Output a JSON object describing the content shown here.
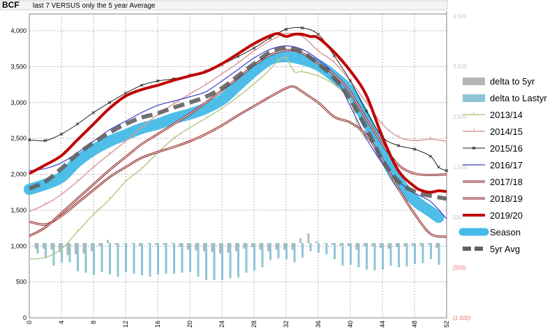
{
  "header": {
    "title": "BCF",
    "subtitle": "last 7 VERSUS only the 5 year Average"
  },
  "chart_data": {
    "type": "line",
    "title": "BCF",
    "subtitle": "last 7 VERSUS only the 5 year Average",
    "xlabel": "",
    "ylabel": "",
    "xlim": [
      0,
      52
    ],
    "ylim": [
      0,
      4200
    ],
    "y2lim": [
      -1500,
      4500
    ],
    "x_ticks": [
      "0",
      "4",
      "8",
      "12",
      "16",
      "20",
      "24",
      "28",
      "32",
      "36",
      "40",
      "44",
      "48",
      "52"
    ],
    "y_ticks": [
      "0",
      "500",
      "1,000",
      "1,500",
      "2,000",
      "2,500",
      "3,000",
      "3,500",
      "4,000"
    ],
    "y2_ticks": [
      "4,500",
      "3,500",
      "2,500",
      "1,500",
      "500",
      "(500)",
      "(1,500)"
    ],
    "grid": true,
    "legend_position": "right",
    "legend": [
      {
        "name": "delta to 5yr",
        "color": "#b5b5b5",
        "style": "bar"
      },
      {
        "name": "delta to Lastyr",
        "color": "#8ec4d4",
        "style": "bar"
      },
      {
        "name": "2013/14",
        "color": "#b5cc8a",
        "style": "ticked"
      },
      {
        "name": "2014/15",
        "color": "#d89c9c",
        "style": "ticked"
      },
      {
        "name": "2015/16",
        "color": "#222222",
        "style": "marker"
      },
      {
        "name": "2016/17",
        "color": "#3f3fcf",
        "style": "line"
      },
      {
        "name": "2017/18",
        "color": "#8b1a1a",
        "style": "double"
      },
      {
        "name": "2018/19",
        "color": "#8b1a1a",
        "style": "double"
      },
      {
        "name": "2019/20",
        "color": "#c00000",
        "style": "thick"
      },
      {
        "name": "Season",
        "color": "#45bbe8",
        "style": "band"
      },
      {
        "name": "5yr Avg",
        "color": "#606060",
        "style": "dashed"
      }
    ],
    "series": [
      {
        "name": "2013/14",
        "color": "#b5cc8a",
        "style": "ticked",
        "x": [
          0,
          2,
          4,
          6,
          8,
          10,
          12,
          14,
          16,
          18,
          20,
          22,
          24,
          26,
          28,
          30,
          31,
          32,
          33,
          34,
          36,
          38,
          40,
          40.5,
          41,
          42
        ],
        "values": [
          820,
          840,
          960,
          1200,
          1440,
          1650,
          1900,
          2080,
          2300,
          2500,
          2650,
          2780,
          2920,
          3080,
          3260,
          3460,
          3580,
          3620,
          3430,
          3430,
          3370,
          3250,
          3040,
          2850,
          2650,
          2480
        ]
      },
      {
        "name": "2014/15",
        "color": "#d89c9c",
        "style": "ticked",
        "x": [
          0,
          2,
          4,
          6,
          8,
          10,
          12,
          14,
          16,
          18,
          20,
          22,
          24,
          26,
          28,
          30,
          32,
          34,
          36,
          38,
          40,
          42,
          44,
          46,
          48,
          50,
          52
        ],
        "values": [
          1480,
          1580,
          1720,
          1900,
          2100,
          2280,
          2460,
          2650,
          2830,
          2980,
          3120,
          3250,
          3400,
          3550,
          3720,
          3860,
          3960,
          3920,
          3720,
          3560,
          3300,
          3000,
          2700,
          2520,
          2470,
          2490,
          2460
        ]
      },
      {
        "name": "2015/16",
        "color": "#222222",
        "style": "marker",
        "x": [
          0,
          2,
          4,
          6,
          8,
          10,
          12,
          14,
          16,
          18,
          20,
          22,
          24,
          26,
          28,
          30,
          32,
          34,
          36,
          38,
          40,
          42,
          44,
          46,
          48,
          50,
          51,
          52
        ],
        "values": [
          2480,
          2470,
          2560,
          2700,
          2860,
          3000,
          3130,
          3240,
          3300,
          3330,
          3380,
          3440,
          3530,
          3640,
          3760,
          3900,
          4020,
          4040,
          3950,
          3650,
          3300,
          2880,
          2520,
          2400,
          2350,
          2250,
          2100,
          2050
        ]
      },
      {
        "name": "2016/17",
        "color": "#3f3fcf",
        "style": "line",
        "x": [
          0,
          2,
          4,
          6,
          8,
          10,
          12,
          14,
          16,
          18,
          20,
          22,
          24,
          26,
          28,
          30,
          32,
          34,
          36,
          38,
          40,
          42,
          44,
          46,
          48,
          50,
          52
        ],
        "values": [
          2050,
          2080,
          2160,
          2300,
          2460,
          2620,
          2740,
          2860,
          2960,
          3020,
          3080,
          3150,
          3300,
          3460,
          3620,
          3740,
          3790,
          3740,
          3600,
          3380,
          2950,
          2500,
          2150,
          1900,
          1740,
          1620,
          1380
        ]
      },
      {
        "name": "2017/18",
        "color": "#8b1a1a",
        "style": "double",
        "x": [
          0,
          2,
          4,
          6,
          8,
          10,
          12,
          14,
          16,
          18,
          20,
          22,
          24,
          26,
          28,
          30,
          32,
          33,
          34,
          36,
          38,
          40,
          42,
          44,
          46,
          48,
          50,
          52
        ],
        "values": [
          1340,
          1300,
          1420,
          1600,
          1780,
          1960,
          2100,
          2230,
          2310,
          2380,
          2460,
          2560,
          2680,
          2820,
          2950,
          3080,
          3200,
          3220,
          3150,
          3000,
          2800,
          2720,
          2550,
          2200,
          1800,
          1450,
          1170,
          1130
        ]
      },
      {
        "name": "2018/19",
        "color": "#8b1a1a",
        "style": "double",
        "x": [
          0,
          2,
          4,
          6,
          8,
          10,
          12,
          14,
          16,
          18,
          20,
          22,
          24,
          26,
          28,
          30,
          32,
          34,
          36,
          38,
          40,
          42,
          44,
          46,
          48,
          50,
          52
        ],
        "values": [
          1140,
          1260,
          1460,
          1660,
          1860,
          2060,
          2240,
          2420,
          2560,
          2700,
          2840,
          3000,
          3170,
          3340,
          3520,
          3660,
          3730,
          3690,
          3550,
          3390,
          3140,
          2770,
          2420,
          2130,
          2010,
          1990,
          2000
        ]
      },
      {
        "name": "2019/20",
        "color": "#c00000",
        "style": "thick",
        "x": [
          0,
          2,
          4,
          6,
          8,
          10,
          12,
          14,
          16,
          18,
          20,
          22,
          24,
          26,
          28,
          30,
          31,
          32,
          33,
          34,
          35,
          36,
          38,
          40,
          42,
          44,
          46,
          48,
          49,
          50,
          51,
          52
        ],
        "values": [
          2010,
          2130,
          2260,
          2480,
          2700,
          2920,
          3090,
          3180,
          3240,
          3310,
          3370,
          3430,
          3540,
          3680,
          3820,
          3930,
          3960,
          3920,
          3950,
          3950,
          3920,
          3900,
          3700,
          3440,
          3100,
          2520,
          2050,
          1830,
          1770,
          1750,
          1770,
          1760
        ]
      },
      {
        "name": "Season",
        "color": "#45bbe8",
        "style": "band",
        "x": [
          0,
          2,
          4,
          6,
          8,
          10,
          12,
          14,
          16,
          18,
          20,
          22,
          24,
          26,
          28,
          30,
          32,
          34,
          36,
          38,
          40,
          42,
          44,
          46,
          48,
          50,
          51
        ],
        "values": [
          1790,
          1860,
          1960,
          2180,
          2340,
          2460,
          2550,
          2640,
          2700,
          2780,
          2840,
          2920,
          3040,
          3240,
          3440,
          3600,
          3640,
          3600,
          3520,
          3360,
          3140,
          2750,
          2300,
          1900,
          1640,
          1480,
          1400
        ]
      },
      {
        "name": "5yr Avg",
        "color": "#606060",
        "style": "dashed",
        "x": [
          0,
          2,
          4,
          6,
          8,
          10,
          12,
          14,
          16,
          18,
          20,
          22,
          24,
          26,
          28,
          30,
          32,
          34,
          36,
          38,
          40,
          42,
          44,
          46,
          48,
          50,
          52
        ],
        "values": [
          1800,
          1900,
          2080,
          2280,
          2440,
          2580,
          2700,
          2790,
          2850,
          2930,
          3000,
          3080,
          3200,
          3370,
          3540,
          3700,
          3760,
          3700,
          3540,
          3340,
          3040,
          2640,
          2200,
          1900,
          1760,
          1700,
          1660
        ]
      },
      {
        "name": "delta to 5yr",
        "color": "#b5b5b5",
        "style": "bar",
        "axis": "y2",
        "x": [
          1,
          2,
          3,
          4,
          5,
          6,
          7,
          8,
          9,
          10,
          11,
          12,
          13,
          14,
          15,
          16,
          17,
          18,
          19,
          20,
          21,
          22,
          23,
          24,
          25,
          26,
          27,
          28,
          29,
          30,
          31,
          32,
          33,
          34,
          35,
          36,
          37,
          38,
          39,
          40,
          41,
          42,
          43,
          44,
          45,
          46,
          47,
          48,
          49,
          50,
          51
        ],
        "values": [
          -70,
          -70,
          -80,
          -110,
          -150,
          -140,
          -130,
          -100,
          -40,
          40,
          -20,
          -10,
          -10,
          -40,
          -10,
          -20,
          -20,
          -10,
          -50,
          -80,
          -90,
          -100,
          -110,
          -130,
          -120,
          -100,
          -70,
          -50,
          -80,
          -100,
          -80,
          -80,
          -80,
          60,
          120,
          20,
          -10,
          -20,
          -30,
          -40,
          -80,
          -40,
          -40,
          -60,
          -70,
          -50,
          -40,
          -30,
          -30,
          -20,
          -60
        ]
      },
      {
        "name": "delta to Lastyr",
        "color": "#8ec4d4",
        "style": "bar",
        "axis": "y2",
        "x": [
          1,
          2,
          3,
          4,
          5,
          6,
          7,
          8,
          9,
          10,
          11,
          12,
          13,
          14,
          15,
          16,
          17,
          18,
          19,
          20,
          21,
          22,
          23,
          24,
          25,
          26,
          27,
          28,
          29,
          30,
          31,
          32,
          33,
          34,
          35,
          36,
          37,
          38,
          39,
          40,
          41,
          42,
          43,
          44,
          45,
          46,
          47,
          48,
          49,
          50,
          51
        ],
        "values": [
          -130,
          -190,
          -280,
          -240,
          -240,
          -350,
          -370,
          -400,
          -360,
          -390,
          -420,
          -360,
          -380,
          -400,
          -420,
          -390,
          -380,
          -380,
          -370,
          -360,
          -420,
          -460,
          -460,
          -460,
          -440,
          -430,
          -370,
          -340,
          -300,
          -210,
          -190,
          -200,
          -240,
          -180,
          -100,
          -120,
          -140,
          -200,
          -280,
          -270,
          -300,
          -330,
          -340,
          -330,
          -280,
          -300,
          -290,
          -260,
          -250,
          -200,
          -270
        ]
      }
    ]
  }
}
